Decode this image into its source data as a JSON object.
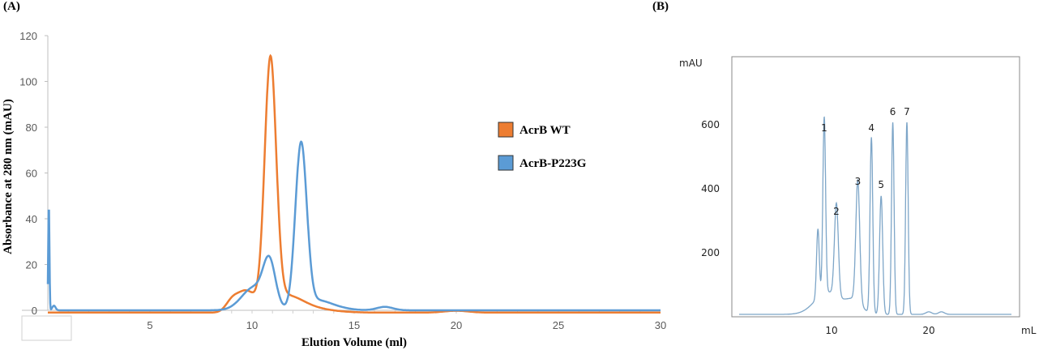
{
  "chart_data": [
    {
      "type": "line",
      "panel_label": "(A)",
      "title": "",
      "xlabel": "Elution Volume (ml)",
      "ylabel": "Absorbance at 280 nm (mAU)",
      "xlim": [
        0,
        30
      ],
      "ylim": [
        0,
        120
      ],
      "xticks": [
        5,
        10,
        15,
        20,
        25,
        30
      ],
      "yticks": [
        0,
        20,
        40,
        60,
        80,
        100,
        120
      ],
      "grid": false,
      "legend": "right",
      "series": [
        {
          "name": "AcrB WT",
          "color": "#ED7D31",
          "baseline": -1,
          "peaks": [
            [
              10.9,
              107,
              0.28
            ],
            [
              9.7,
              9,
              0.45
            ],
            [
              9.0,
              4,
              0.3
            ],
            [
              11.6,
              6,
              0.8
            ],
            [
              12.5,
              2,
              1.2
            ],
            [
              20,
              0.8,
              0.6
            ]
          ]
        },
        {
          "name": "AcrB-P223G",
          "color": "#5B9BD5",
          "baseline": 0,
          "peaks": [
            [
              10.85,
              19,
              0.3
            ],
            [
              10.1,
              10,
              0.6
            ],
            [
              12.4,
              72,
              0.28
            ],
            [
              13.2,
              4,
              0.6
            ],
            [
              14.2,
              1,
              0.6
            ],
            [
              16.5,
              1.5,
              0.4
            ],
            [
              0.05,
              46,
              0.03
            ],
            [
              0.3,
              2,
              0.08
            ]
          ]
        }
      ]
    },
    {
      "type": "line",
      "panel_label": "(B)",
      "xlabel": "mL",
      "ylabel": "mAU",
      "xlim": [
        0,
        29
      ],
      "ylim": [
        0,
        800
      ],
      "xticks": [
        10,
        20
      ],
      "yticks": [
        200,
        400,
        600
      ],
      "grid": false,
      "series": [
        {
          "name": "chromatogram",
          "color": "#7EA6C8",
          "baseline": 5,
          "peaks": [
            [
              8.6,
              215,
              0.14
            ],
            [
              9.25,
              550,
              0.14
            ],
            [
              10.5,
              290,
              0.2
            ],
            [
              12.7,
              380,
              0.2
            ],
            [
              14.1,
              550,
              0.14
            ],
            [
              15.1,
              370,
              0.16
            ],
            [
              16.3,
              600,
              0.13
            ],
            [
              17.75,
              600,
              0.13
            ],
            [
              9.6,
              70,
              1.3
            ],
            [
              12.3,
              40,
              0.8
            ],
            [
              20,
              8,
              0.3
            ],
            [
              21.3,
              8,
              0.3
            ]
          ]
        }
      ],
      "annotations": [
        {
          "text": "1",
          "x": 9.25,
          "y": 557
        },
        {
          "text": "2",
          "x": 10.5,
          "y": 296
        },
        {
          "text": "3",
          "x": 12.7,
          "y": 390
        },
        {
          "text": "4",
          "x": 14.1,
          "y": 557
        },
        {
          "text": "5",
          "x": 15.1,
          "y": 380
        },
        {
          "text": "6",
          "x": 16.3,
          "y": 608
        },
        {
          "text": "7",
          "x": 17.75,
          "y": 608
        }
      ]
    }
  ]
}
